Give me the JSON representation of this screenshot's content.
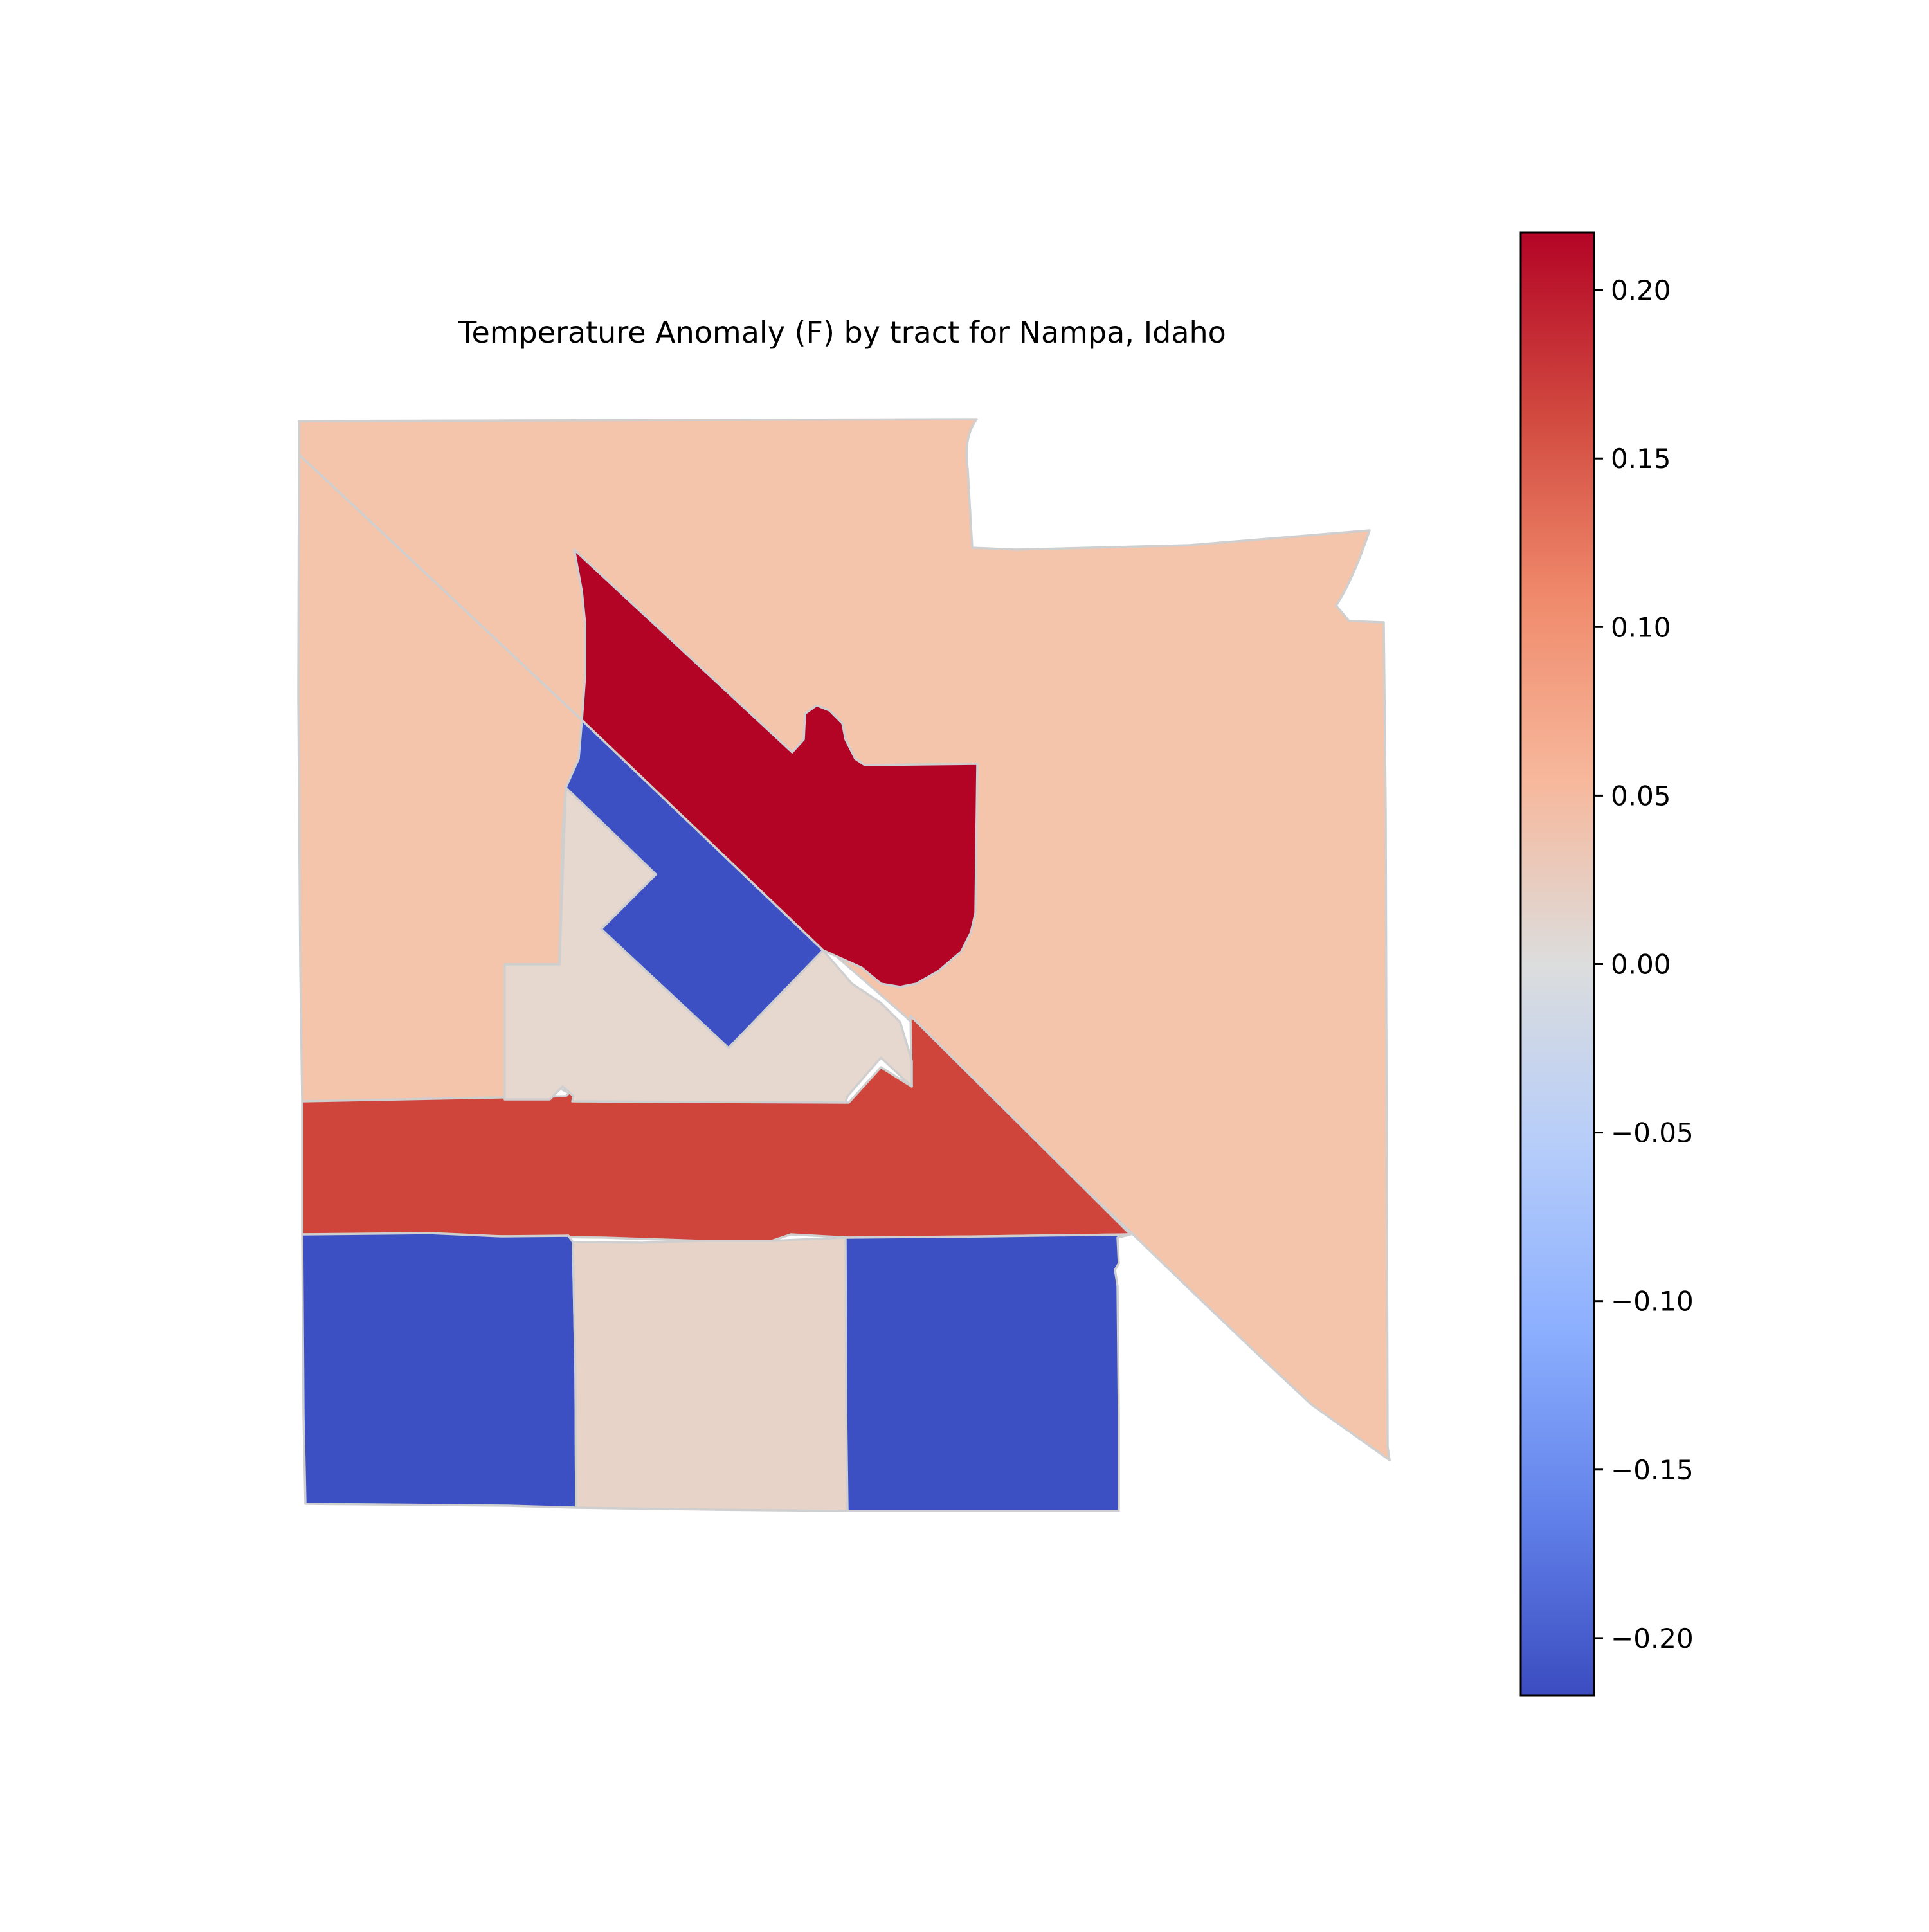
{
  "title": "Temperature Anomaly (F) by tract for Nampa, Idaho",
  "chart_data": {
    "type": "choropleth",
    "title": "Temperature Anomaly (F) by tract for Nampa, Idaho",
    "colormap": "coolwarm",
    "colorbar": {
      "min": -0.217,
      "max": 0.217,
      "ticks": [
        0.2,
        0.15,
        0.1,
        0.05,
        0.0,
        -0.05,
        -0.1,
        -0.15,
        -0.2
      ],
      "tick_labels": [
        "0.20",
        "0.15",
        "0.10",
        "0.05",
        "0.00",
        "−0.05",
        "−0.10",
        "−0.15",
        "−0.20"
      ],
      "stops": [
        "#b40426",
        "#d1493f",
        "#f08a6c",
        "#f7b89c",
        "#dcdddd",
        "#b6cdfa",
        "#8caffe",
        "#6282ea",
        "#3b4cc0"
      ]
    },
    "tracts": [
      {
        "id": "north-west",
        "value": 0.065,
        "color": "#f4c4ab"
      },
      {
        "id": "north-east",
        "value": 0.065,
        "color": "#f4c4ab"
      },
      {
        "id": "central-north",
        "value": 0.217,
        "color": "#b40426"
      },
      {
        "id": "central-east-blue",
        "value": -0.205,
        "color": "#3d50c3"
      },
      {
        "id": "central-neutral",
        "value": 0.025,
        "color": "#e6d7cf"
      },
      {
        "id": "central-band",
        "value": 0.18,
        "color": "#cf453c"
      },
      {
        "id": "south-west",
        "value": -0.205,
        "color": "#3d50c3"
      },
      {
        "id": "south-middle",
        "value": 0.03,
        "color": "#e8d3c8"
      },
      {
        "id": "south-east",
        "value": -0.205,
        "color": "#3d50c3"
      }
    ]
  }
}
